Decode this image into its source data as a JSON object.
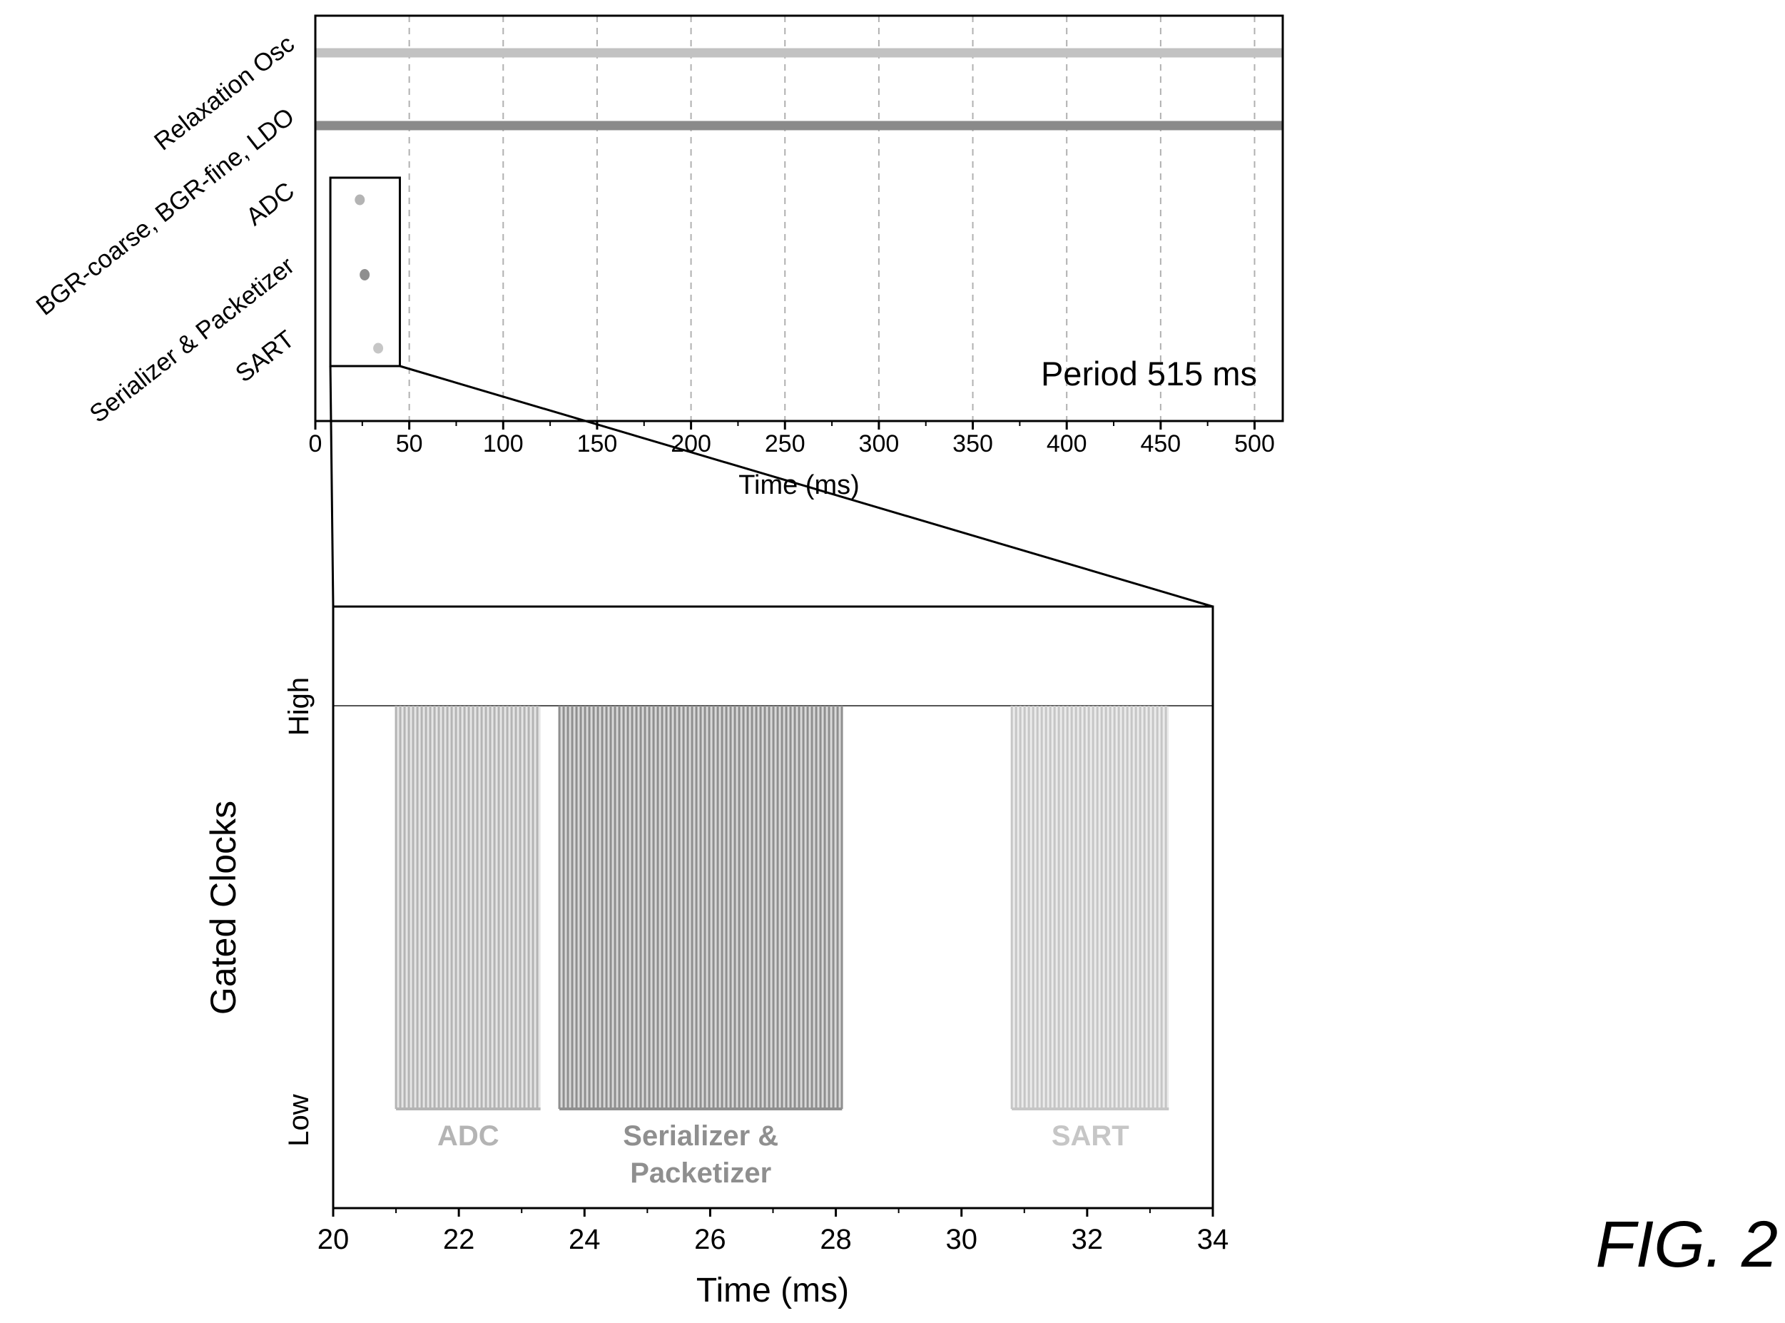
{
  "figure_label": "FIG. 2",
  "colors": {
    "osc": "#c2c2c2",
    "bgr": "#8a8a8a",
    "adc": "#b4b4b4",
    "ser": "#8f8f8f",
    "sart": "#c6c6c6",
    "grid": "#b0b0b0",
    "axis": "#000000"
  },
  "chart_data": [
    {
      "type": "timeline",
      "xlabel": "Time (ms)",
      "xlim": [
        0,
        515
      ],
      "xticks": [
        0,
        50,
        100,
        150,
        200,
        250,
        300,
        350,
        400,
        450,
        500
      ],
      "grid_x": true,
      "rows": [
        {
          "label": "Relaxation Osc",
          "color_key": "osc",
          "spans": [
            [
              0,
              515
            ]
          ]
        },
        {
          "label": "BGR-coarse, BGR-fine, LDO",
          "color_key": "bgr",
          "spans": [
            [
              0,
              515
            ]
          ]
        },
        {
          "label": "ADC",
          "color_key": "adc",
          "spans": [
            [
              21,
              23.3
            ]
          ]
        },
        {
          "label": "Serializer & Packetizer",
          "color_key": "ser",
          "spans": [
            [
              23.6,
              28.1
            ]
          ]
        },
        {
          "label": "SART",
          "color_key": "sart",
          "spans": [
            [
              30.8,
              33.3
            ]
          ]
        }
      ],
      "zoom_window": [
        8,
        45
      ],
      "annotation": "Period 515 ms"
    },
    {
      "type": "gated-clock",
      "xlabel": "Time (ms)",
      "ylabel": "Gated Clocks",
      "xlim": [
        20,
        34
      ],
      "xticks": [
        20,
        22,
        24,
        26,
        28,
        30,
        32,
        34
      ],
      "yticks": [
        "Low",
        "High"
      ],
      "bursts": [
        {
          "label": "ADC",
          "start": 21,
          "end": 23.3,
          "color_key": "adc"
        },
        {
          "label": "Serializer &\nPacketizer",
          "start": 23.6,
          "end": 28.1,
          "color_key": "ser"
        },
        {
          "label": "SART",
          "start": 30.8,
          "end": 33.3,
          "color_key": "sart"
        }
      ]
    }
  ]
}
